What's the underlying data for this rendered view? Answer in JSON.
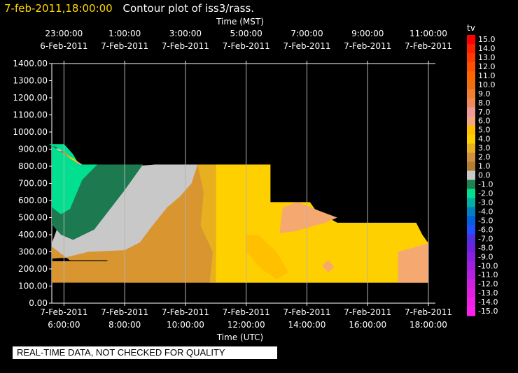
{
  "header": {
    "timestamp": "7-feb-2011,18:00:00",
    "title": "Contour plot of iss3/rass."
  },
  "note": "REAL-TIME DATA, NOT CHECKED FOR QUALITY",
  "colors": {
    "background": "#000000",
    "grid": "#b4b4b4",
    "text": "#ffffff",
    "timestamp": "#ffd700"
  },
  "chart_data": {
    "type": "heatmap",
    "title": "Contour plot of iss3/rass.",
    "xlabel_top": "Time (MST)",
    "xlabel_bottom": "Time (UTC)",
    "ylabel": "",
    "ylim": [
      0,
      1400
    ],
    "grid": true,
    "y_ticks": [
      "1400.00",
      "1300.00",
      "1200.00",
      "1100.00",
      "1000.00",
      "900.00",
      "800.00",
      "700.00",
      "600.00",
      "500.00",
      "400.00",
      "300.00",
      "200.00",
      "100.00",
      "0.00"
    ],
    "x_ticks_bottom": [
      {
        "date": "7-Feb-2011",
        "time": "6:00:00"
      },
      {
        "date": "7-Feb-2011",
        "time": "8:00:00"
      },
      {
        "date": "7-Feb-2011",
        "time": "10:00:00"
      },
      {
        "date": "7-Feb-2011",
        "time": "12:00:00"
      },
      {
        "date": "7-Feb-2011",
        "time": "14:00:00"
      },
      {
        "date": "7-Feb-2011",
        "time": "16:00:00"
      },
      {
        "date": "7-Feb-2011",
        "time": "18:00:00"
      }
    ],
    "x_ticks_top": [
      {
        "time": "23:00:00",
        "date": "6-Feb-2011"
      },
      {
        "time": "1:00:00",
        "date": "7-Feb-2011"
      },
      {
        "time": "3:00:00",
        "date": "7-Feb-2011"
      },
      {
        "time": "5:00:00",
        "date": "7-Feb-2011"
      },
      {
        "time": "7:00:00",
        "date": "7-Feb-2011"
      },
      {
        "time": "9:00:00",
        "date": "7-Feb-2011"
      },
      {
        "time": "11:00:00",
        "date": "7-Feb-2011"
      }
    ],
    "colorbar": {
      "label": "tv",
      "levels": [
        {
          "label": "15.0",
          "color": "#ff0000"
        },
        {
          "label": "14.0",
          "color": "#ff2000"
        },
        {
          "label": "13.0",
          "color": "#ff3a00"
        },
        {
          "label": "12.0",
          "color": "#ff5000"
        },
        {
          "label": "11.0",
          "color": "#ff6600"
        },
        {
          "label": "10.0",
          "color": "#f07010"
        },
        {
          "label": "9.0",
          "color": "#f08030"
        },
        {
          "label": "8.0",
          "color": "#f08858"
        },
        {
          "label": "7.0",
          "color": "#f09898"
        },
        {
          "label": "6.0",
          "color": "#f5a880"
        },
        {
          "label": "5.0",
          "color": "#ffc000"
        },
        {
          "label": "4.0",
          "color": "#ffd000"
        },
        {
          "label": "3.0",
          "color": "#e8b020"
        },
        {
          "label": "2.0",
          "color": "#d09040"
        },
        {
          "label": "1.0",
          "color": "#b08030"
        },
        {
          "label": "0.0",
          "color": "#c8c8c8"
        },
        {
          "label": "-1.0",
          "color": "#208050"
        },
        {
          "label": "-2.0",
          "color": "#00e090"
        },
        {
          "label": "-3.0",
          "color": "#00b0a0"
        },
        {
          "label": "-4.0",
          "color": "#0080c0"
        },
        {
          "label": "-5.0",
          "color": "#0060e0"
        },
        {
          "label": "-6.0",
          "color": "#2050ff"
        },
        {
          "label": "-7.0",
          "color": "#5030e0"
        },
        {
          "label": "-8.0",
          "color": "#7020e0"
        },
        {
          "label": "-9.0",
          "color": "#8820e0"
        },
        {
          "label": "-10.0",
          "color": "#a020e0"
        },
        {
          "label": "-11.0",
          "color": "#b820e0"
        },
        {
          "label": "-12.0",
          "color": "#d020e0"
        },
        {
          "label": "-13.0",
          "color": "#e020e0"
        },
        {
          "label": "-14.0",
          "color": "#f020e8"
        },
        {
          "label": "-15.0",
          "color": "#ff20f0"
        }
      ]
    },
    "regions": [
      {
        "value": "2.0",
        "color": "#d89530",
        "hours": [
          [
            5.6,
            210
          ],
          [
            5.6,
            120
          ],
          [
            18.0,
            120
          ],
          [
            18.0,
            245
          ],
          [
            5.6,
            245
          ]
        ]
      },
      {
        "value": "0.0",
        "color": "#c8c8c8",
        "hours": [
          [
            5.6,
            350
          ],
          [
            5.6,
            265
          ],
          [
            7.3,
            265
          ],
          [
            8.0,
            270
          ],
          [
            8.0,
            285
          ],
          [
            8.5,
            330
          ],
          [
            9.0,
            400
          ],
          [
            9.7,
            520
          ],
          [
            10.3,
            610
          ],
          [
            10.9,
            720
          ],
          [
            10.9,
            810
          ],
          [
            9.0,
            810
          ],
          [
            8.3,
            800
          ],
          [
            6.3,
            690
          ],
          [
            5.6,
            350
          ]
        ]
      },
      {
        "value": "-1.0",
        "color": "#1d7a50",
        "hours": [
          [
            5.6,
            640
          ],
          [
            5.6,
            460
          ],
          [
            5.9,
            400
          ],
          [
            6.3,
            370
          ],
          [
            7.0,
            430
          ],
          [
            8.0,
            660
          ],
          [
            8.6,
            810
          ],
          [
            6.0,
            810
          ],
          [
            5.6,
            750
          ]
        ]
      },
      {
        "value": "-2.0",
        "color": "#00e090",
        "hours": [
          [
            5.6,
            930
          ],
          [
            5.6,
            560
          ],
          [
            5.9,
            520
          ],
          [
            6.2,
            550
          ],
          [
            6.6,
            720
          ],
          [
            7.1,
            810
          ],
          [
            6.5,
            810
          ],
          [
            6.3,
            870
          ],
          [
            6.0,
            930
          ]
        ]
      },
      {
        "value": "2.0",
        "color": "#d89530",
        "hours": [
          [
            5.6,
            330
          ],
          [
            5.6,
            260
          ],
          [
            6.0,
            265
          ],
          [
            6.8,
            300
          ],
          [
            8.0,
            310
          ],
          [
            8.5,
            355
          ],
          [
            8.9,
            450
          ],
          [
            9.4,
            560
          ],
          [
            9.8,
            620
          ],
          [
            10.2,
            700
          ],
          [
            10.4,
            810
          ],
          [
            11.0,
            810
          ],
          [
            11.0,
            120
          ],
          [
            8.0,
            120
          ],
          [
            8.0,
            200
          ],
          [
            7.4,
            250
          ],
          [
            6.2,
            250
          ]
        ]
      },
      {
        "value": "3.0",
        "color": "#e8b020",
        "hours": [
          [
            10.4,
            810
          ],
          [
            11.0,
            810
          ],
          [
            11.0,
            120
          ],
          [
            10.8,
            120
          ],
          [
            10.9,
            300
          ],
          [
            10.5,
            450
          ],
          [
            10.6,
            650
          ]
        ]
      },
      {
        "value": "4.0",
        "color": "#ffd000",
        "hours": [
          [
            11.0,
            120
          ],
          [
            18.0,
            120
          ],
          [
            18.0,
            350
          ],
          [
            17.8,
            400
          ],
          [
            17.6,
            470
          ],
          [
            15.5,
            470
          ],
          [
            15.0,
            470
          ],
          [
            14.3,
            540
          ],
          [
            14.1,
            590
          ],
          [
            13.4,
            590
          ],
          [
            12.8,
            590
          ],
          [
            12.8,
            810
          ],
          [
            11.0,
            810
          ]
        ]
      },
      {
        "value": "5.0",
        "color": "#ffc000",
        "hours": [
          [
            12.4,
            400
          ],
          [
            13.0,
            300
          ],
          [
            13.4,
            180
          ],
          [
            13.0,
            140
          ],
          [
            12.5,
            200
          ],
          [
            12.0,
            300
          ],
          [
            12.0,
            400
          ]
        ]
      },
      {
        "value": "6.0",
        "color": "#f5a870",
        "hours": [
          [
            13.1,
            410
          ],
          [
            13.2,
            560
          ],
          [
            13.7,
            590
          ],
          [
            14.0,
            570
          ],
          [
            14.4,
            540
          ],
          [
            15.0,
            500
          ],
          [
            14.6,
            470
          ],
          [
            14.0,
            440
          ],
          [
            13.6,
            420
          ],
          [
            13.1,
            410
          ]
        ]
      },
      {
        "value": "6.0",
        "color": "#f5a870",
        "hours": [
          [
            17.0,
            120
          ],
          [
            18.0,
            120
          ],
          [
            18.0,
            350
          ],
          [
            17.0,
            300
          ]
        ]
      },
      {
        "value": "6.0",
        "color": "#f5a870",
        "hours": [
          [
            14.5,
            220
          ],
          [
            14.7,
            250
          ],
          [
            14.9,
            210
          ],
          [
            14.7,
            180
          ]
        ]
      }
    ],
    "wedge": {
      "values": [
        "-2.0",
        "-1.0",
        "0.0",
        "1.0",
        "2.0",
        "3.0",
        "4.0",
        "5.0",
        "6.0"
      ]
    }
  }
}
